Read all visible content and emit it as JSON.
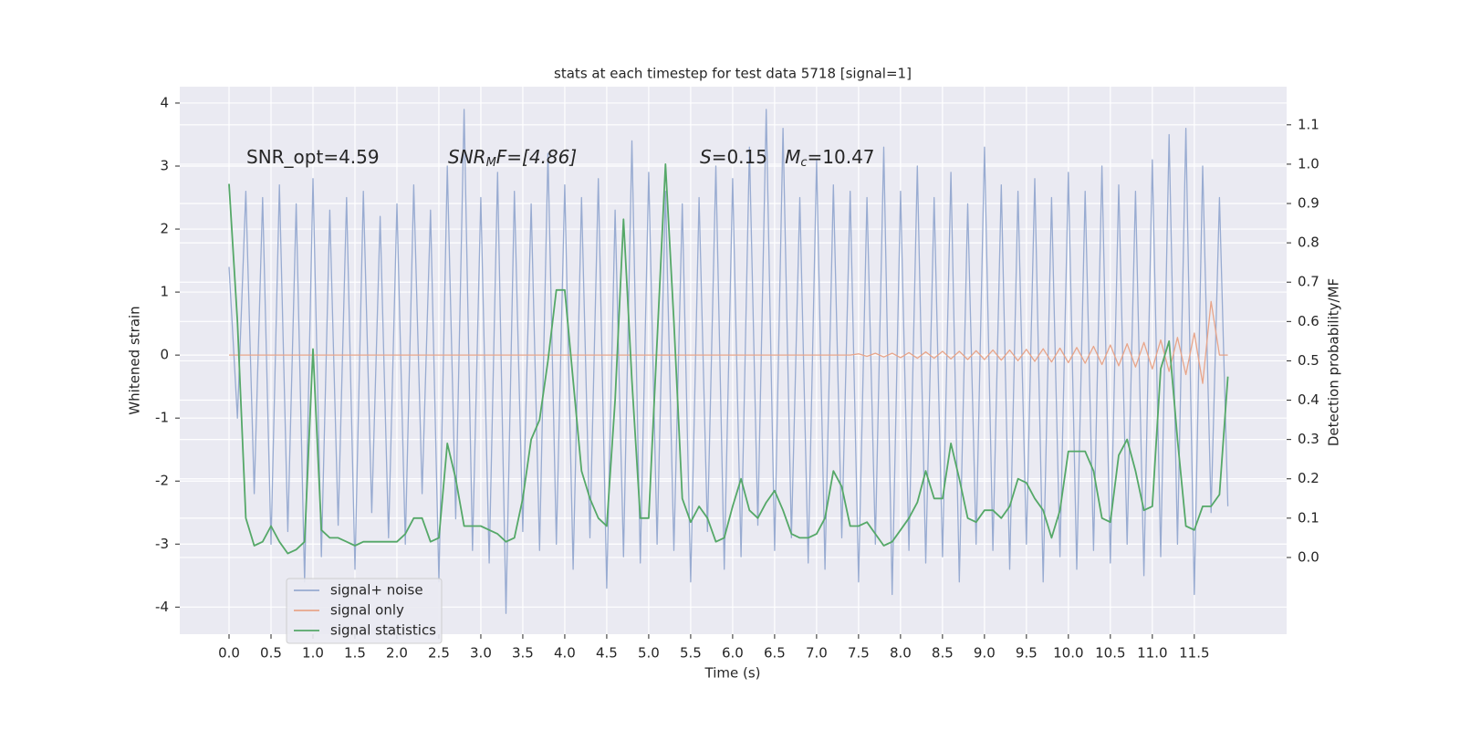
{
  "chart_data": {
    "type": "line",
    "title": "stats at each timestep for test data 5718 [signal=1]",
    "xlabel": "Time (s)",
    "ylabel": "Whitened strain",
    "y2label": "Detection probability/MF",
    "annotations": [
      {
        "parts": [
          "SNR_opt=4.59"
        ]
      },
      {
        "parts": [
          "SNR",
          "M",
          "F=[4.86]"
        ]
      },
      {
        "parts": [
          "S",
          "=0.15   ",
          "M",
          "c",
          "=10.47"
        ]
      }
    ],
    "x": [
      0,
      0.1,
      0.2,
      0.3,
      0.4,
      0.5,
      0.6,
      0.7,
      0.8,
      0.9,
      1,
      1.1,
      1.2,
      1.3,
      1.4,
      1.5,
      1.6,
      1.7,
      1.8,
      1.9,
      2,
      2.1,
      2.2,
      2.3,
      2.4,
      2.5,
      2.6,
      2.7,
      2.8,
      2.9,
      3,
      3.1,
      3.2,
      3.3,
      3.4,
      3.5,
      3.6,
      3.7,
      3.8,
      3.9,
      4,
      4.1,
      4.2,
      4.3,
      4.4,
      4.5,
      4.6,
      4.7,
      4.8,
      4.9,
      5,
      5.1,
      5.2,
      5.3,
      5.4,
      5.5,
      5.6,
      5.7,
      5.8,
      5.9,
      6,
      6.1,
      6.2,
      6.3,
      6.4,
      6.5,
      6.6,
      6.7,
      6.8,
      6.9,
      7,
      7.1,
      7.2,
      7.3,
      7.4,
      7.5,
      7.6,
      7.7,
      7.8,
      7.9,
      8,
      8.1,
      8.2,
      8.3,
      8.4,
      8.5,
      8.6,
      8.7,
      8.8,
      8.9,
      9,
      9.1,
      9.2,
      9.3,
      9.4,
      9.5,
      9.6,
      9.7,
      9.8,
      9.9,
      10,
      10.1,
      10.2,
      10.3,
      10.4,
      10.5,
      10.6,
      10.7,
      10.8,
      10.9,
      11,
      11.1,
      11.2,
      11.3,
      11.4,
      11.5,
      11.6,
      11.7,
      11.8,
      11.9
    ],
    "series": [
      {
        "name": "signal+ noise",
        "color": "#98abd1",
        "values": [
          1.4,
          -1.0,
          2.6,
          -2.2,
          2.5,
          -3.0,
          2.7,
          -2.8,
          2.4,
          -3.6,
          2.8,
          -3.2,
          2.3,
          -2.7,
          2.5,
          -3.4,
          2.6,
          -2.5,
          2.2,
          -2.9,
          2.4,
          -3.0,
          2.7,
          -2.2,
          2.3,
          -3.6,
          3.0,
          -2.6,
          3.9,
          -3.1,
          2.5,
          -3.3,
          2.9,
          -4.1,
          2.6,
          -2.8,
          2.4,
          -3.1,
          3.2,
          -3.0,
          2.7,
          -3.4,
          2.5,
          -2.9,
          2.8,
          -3.7,
          2.3,
          -3.2,
          3.4,
          -3.3,
          2.9,
          -3.0,
          2.6,
          -3.1,
          2.4,
          -3.6,
          2.5,
          -2.8,
          3.0,
          -3.4,
          2.8,
          -3.2,
          3.3,
          -2.7,
          3.9,
          -3.1,
          3.6,
          -2.9,
          2.5,
          -3.3,
          3.1,
          -3.4,
          2.7,
          -2.9,
          2.6,
          -3.6,
          2.5,
          -3.0,
          3.3,
          -3.8,
          2.6,
          -3.1,
          3.0,
          -3.3,
          2.5,
          -3.2,
          2.9,
          -3.6,
          2.4,
          -3.0,
          3.3,
          -3.1,
          2.7,
          -3.4,
          2.6,
          -3.0,
          2.8,
          -3.6,
          2.5,
          -3.2,
          2.9,
          -3.4,
          2.6,
          -3.1,
          3.0,
          -3.3,
          2.7,
          -3.0,
          2.6,
          -3.5,
          3.1,
          -3.2,
          3.5,
          -3.0,
          3.6,
          -3.8,
          3.0,
          -2.5,
          2.5,
          -2.4
        ]
      },
      {
        "name": "signal only",
        "color": "#e8a58a",
        "values": [
          0,
          0,
          0,
          0,
          0,
          0,
          0,
          0,
          0,
          0,
          0,
          0,
          0,
          0,
          0,
          0,
          0,
          0,
          0,
          0,
          0,
          0,
          0,
          0,
          0,
          0,
          0,
          0,
          0,
          0,
          0,
          0,
          0,
          0,
          0,
          0,
          0,
          0,
          0,
          0,
          0,
          0,
          0,
          0,
          0,
          0,
          0,
          0,
          0,
          0,
          0,
          0,
          0,
          0,
          0,
          0,
          0,
          0,
          0,
          0,
          0,
          0,
          0,
          0,
          0,
          0,
          0,
          0,
          0,
          0,
          0,
          0,
          0,
          0,
          0,
          0.02,
          -0.02,
          0.03,
          -0.03,
          0.03,
          -0.04,
          0.04,
          -0.05,
          0.05,
          -0.05,
          0.06,
          -0.06,
          0.06,
          -0.07,
          0.07,
          -0.07,
          0.08,
          -0.08,
          0.08,
          -0.09,
          0.09,
          -0.1,
          0.1,
          -0.11,
          0.11,
          -0.12,
          0.12,
          -0.13,
          0.14,
          -0.15,
          0.16,
          -0.17,
          0.18,
          -0.19,
          0.2,
          -0.22,
          0.24,
          -0.26,
          0.28,
          -0.31,
          0.35,
          -0.45,
          0.85,
          0,
          0
        ]
      },
      {
        "name": "signal statistics",
        "color": "#55a868",
        "axis": "y2",
        "values": [
          0.95,
          0.6,
          0.1,
          0.03,
          0.04,
          0.08,
          0.04,
          0.01,
          0.02,
          0.04,
          0.53,
          0.07,
          0.05,
          0.05,
          0.04,
          0.03,
          0.04,
          0.04,
          0.04,
          0.04,
          0.04,
          0.06,
          0.1,
          0.1,
          0.04,
          0.05,
          0.29,
          0.2,
          0.08,
          0.08,
          0.08,
          0.07,
          0.06,
          0.04,
          0.05,
          0.15,
          0.3,
          0.35,
          0.5,
          0.68,
          0.68,
          0.45,
          0.22,
          0.15,
          0.1,
          0.08,
          0.4,
          0.86,
          0.45,
          0.1,
          0.1,
          0.55,
          1.0,
          0.6,
          0.15,
          0.09,
          0.13,
          0.1,
          0.04,
          0.05,
          0.13,
          0.2,
          0.12,
          0.1,
          0.14,
          0.17,
          0.12,
          0.06,
          0.05,
          0.05,
          0.06,
          0.1,
          0.22,
          0.18,
          0.08,
          0.08,
          0.09,
          0.06,
          0.03,
          0.04,
          0.07,
          0.1,
          0.14,
          0.22,
          0.15,
          0.15,
          0.29,
          0.2,
          0.1,
          0.09,
          0.12,
          0.12,
          0.1,
          0.13,
          0.2,
          0.19,
          0.15,
          0.12,
          0.05,
          0.12,
          0.27,
          0.27,
          0.27,
          0.22,
          0.1,
          0.09,
          0.26,
          0.3,
          0.22,
          0.12,
          0.13,
          0.48,
          0.55,
          0.3,
          0.08,
          0.07,
          0.13,
          0.13,
          0.16,
          0.46
        ]
      }
    ],
    "xlim": [
      -0.587,
      12.6
    ],
    "ylim": [
      -4.43,
      4.26
    ],
    "y2lim": [
      -0.195,
      1.197
    ],
    "xticks": [
      {
        "value": 0,
        "label": "0.0"
      },
      {
        "value": 0.5,
        "label": "0.5"
      },
      {
        "value": 1,
        "label": "1.0"
      },
      {
        "value": 1.5,
        "label": "1.5"
      },
      {
        "value": 2,
        "label": "2.0"
      },
      {
        "value": 2.5,
        "label": "2.5"
      },
      {
        "value": 3,
        "label": "3.0"
      },
      {
        "value": 3.5,
        "label": "3.5"
      },
      {
        "value": 4,
        "label": "4.0"
      },
      {
        "value": 4.5,
        "label": "4.5"
      },
      {
        "value": 5,
        "label": "5.0"
      },
      {
        "value": 5.5,
        "label": "5.5"
      },
      {
        "value": 6,
        "label": "6.0"
      },
      {
        "value": 6.5,
        "label": "6.5"
      },
      {
        "value": 7,
        "label": "7.0"
      },
      {
        "value": 7.5,
        "label": "7.5"
      },
      {
        "value": 8,
        "label": "8.0"
      },
      {
        "value": 8.5,
        "label": "8.5"
      },
      {
        "value": 9,
        "label": "9.0"
      },
      {
        "value": 9.5,
        "label": "9.5"
      },
      {
        "value": 10,
        "label": "10.0"
      },
      {
        "value": 10.5,
        "label": "10.5"
      },
      {
        "value": 11,
        "label": "11.0"
      },
      {
        "value": 11.5,
        "label": "11.5"
      }
    ],
    "yticks": [
      -4,
      -3,
      -2,
      -1,
      0,
      1,
      2,
      3,
      4
    ],
    "y2ticks": [
      {
        "value": 0,
        "label": "0.0"
      },
      0.1,
      0.2,
      0.3,
      0.4,
      0.5,
      0.6,
      0.7,
      0.8,
      0.9,
      {
        "value": 1,
        "label": "1.0"
      },
      1.1
    ],
    "grid": true,
    "legend": "lower left"
  }
}
